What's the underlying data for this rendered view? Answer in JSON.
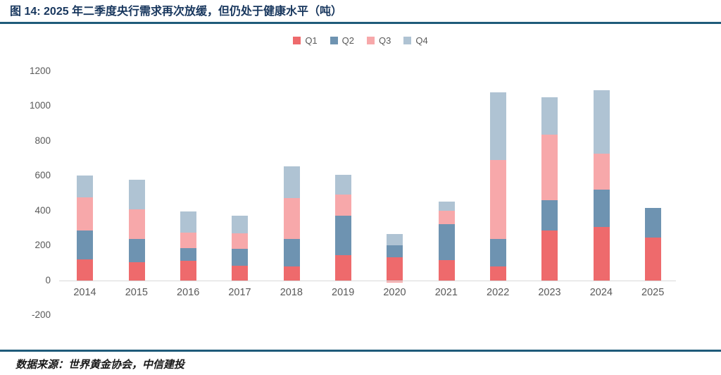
{
  "title": "图 14: 2025 年二季度央行需求再次放缓，但仍处于健康水平（吨）",
  "source_note": "数据来源：世界黄金协会，中信建投",
  "colors": {
    "title_text": "#17365d",
    "rule": "#1f5b7a",
    "axis_text": "#595959",
    "zero_line": "#d9d9d9",
    "q1": "#ee6a6c",
    "q2": "#6e93b1",
    "q3": "#f7a8aa",
    "q4": "#afc3d3"
  },
  "chart_data": {
    "type": "bar",
    "stacked": true,
    "title": "图 14: 2025 年二季度央行需求再次放缓，但仍处于健康水平（吨）",
    "unit": "吨",
    "categories": [
      "2014",
      "2015",
      "2016",
      "2017",
      "2018",
      "2019",
      "2020",
      "2021",
      "2022",
      "2023",
      "2024",
      "2025"
    ],
    "series": [
      {
        "name": "Q1",
        "color_key": "q1",
        "values": [
          120,
          105,
          110,
          85,
          80,
          145,
          130,
          115,
          80,
          285,
          305,
          245
        ]
      },
      {
        "name": "Q2",
        "color_key": "q2",
        "values": [
          165,
          130,
          75,
          95,
          155,
          225,
          70,
          205,
          155,
          175,
          215,
          170
        ]
      },
      {
        "name": "Q3",
        "color_key": "q3",
        "values": [
          190,
          170,
          90,
          90,
          235,
          120,
          -10,
          80,
          455,
          375,
          205,
          0
        ]
      },
      {
        "name": "Q4",
        "color_key": "q4",
        "values": [
          125,
          170,
          120,
          100,
          185,
          115,
          65,
          50,
          390,
          215,
          365,
          0
        ]
      }
    ],
    "totals": [
      600,
      575,
      395,
      370,
      655,
      605,
      255,
      450,
      1080,
      1050,
      1090,
      415
    ],
    "y_ticks": [
      1200,
      1000,
      800,
      600,
      400,
      200,
      0,
      -200
    ],
    "ylim": [
      -200,
      1200
    ],
    "xlabel": "",
    "ylabel": "",
    "legend_position": "top-center",
    "grid": "zero-line-only"
  }
}
